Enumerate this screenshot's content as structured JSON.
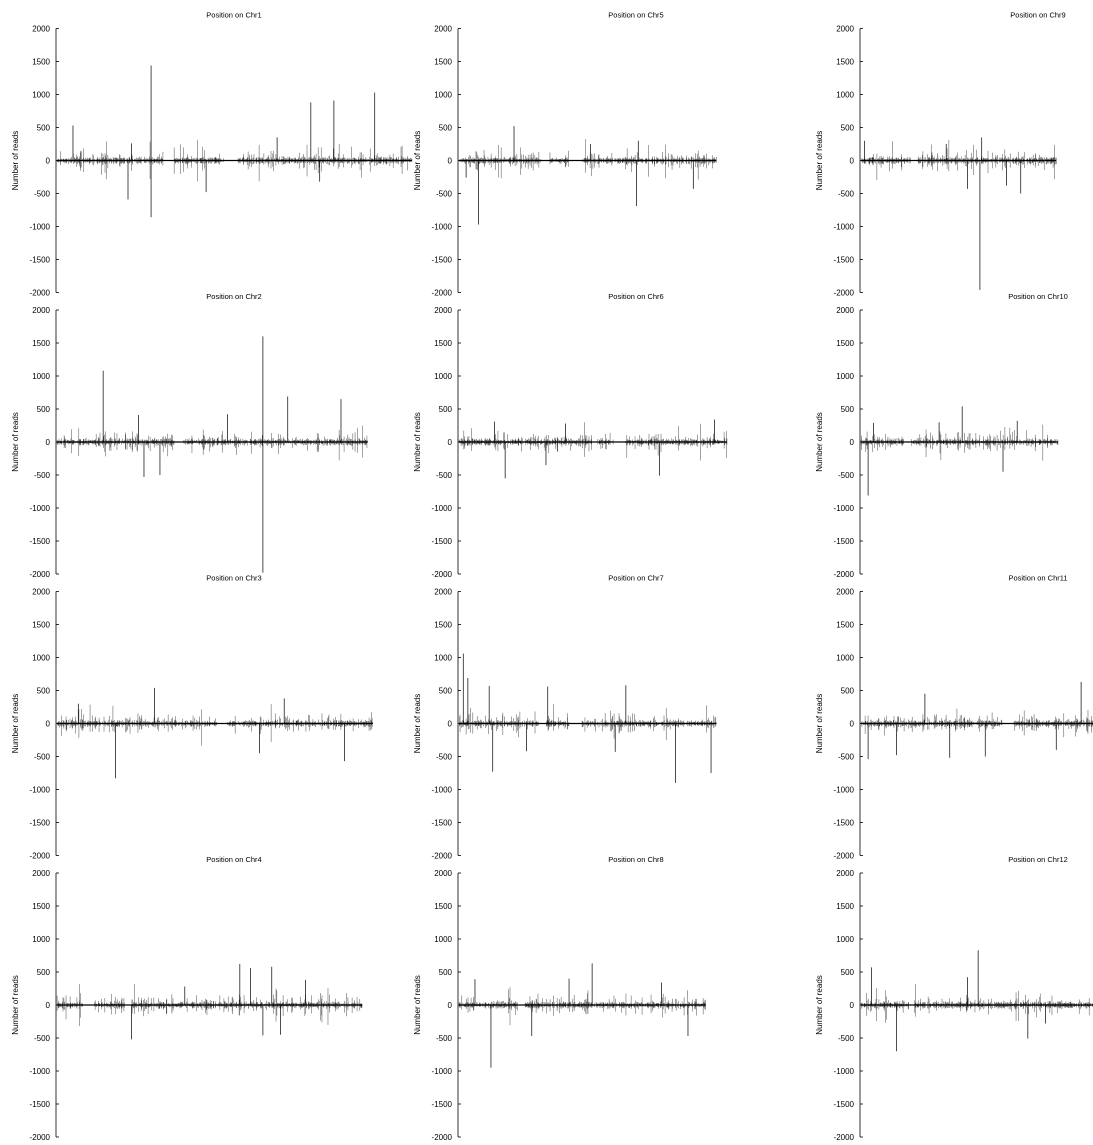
{
  "chart_data": [
    {
      "type": "bar",
      "title": "Position on Chr1",
      "ylabel": "Number of reads",
      "ylim": [
        -2000,
        2000
      ],
      "yticks": [
        2000,
        1500,
        1000,
        500,
        0,
        -500,
        -1000,
        -1500,
        -2000
      ],
      "extent": 1.0,
      "gaps": [
        [
          0.3,
          0.33
        ],
        [
          0.47,
          0.51
        ]
      ],
      "seed": 11,
      "spikes": [
        {
          "x": 0.045,
          "y": 530
        },
        {
          "x": 0.21,
          "y": 260
        },
        {
          "x": 0.265,
          "y": 1440
        },
        {
          "x": 0.265,
          "y": -860
        },
        {
          "x": 0.2,
          "y": -590
        },
        {
          "x": 0.42,
          "y": -480
        },
        {
          "x": 0.715,
          "y": 880
        },
        {
          "x": 0.78,
          "y": 910
        },
        {
          "x": 0.895,
          "y": 1030
        },
        {
          "x": 0.74,
          "y": -320
        },
        {
          "x": 0.62,
          "y": 350
        }
      ]
    },
    {
      "type": "bar",
      "title": "Position on Chr2",
      "ylabel": "Number of reads",
      "ylim": [
        -2000,
        2000
      ],
      "yticks": [
        2000,
        1500,
        1000,
        500,
        0,
        -500,
        -1000,
        -1500,
        -2000
      ],
      "extent": 0.875,
      "gaps": [
        [
          0.33,
          0.355
        ]
      ],
      "seed": 23,
      "spikes": [
        {
          "x": 0.13,
          "y": 1080
        },
        {
          "x": 0.58,
          "y": 1600
        },
        {
          "x": 0.58,
          "y": -1980
        },
        {
          "x": 0.65,
          "y": 690
        },
        {
          "x": 0.8,
          "y": 650
        },
        {
          "x": 0.245,
          "y": -530
        },
        {
          "x": 0.29,
          "y": -500
        },
        {
          "x": 0.48,
          "y": 420
        },
        {
          "x": 0.23,
          "y": 410
        }
      ]
    },
    {
      "type": "bar",
      "title": "Position on Chr3",
      "ylabel": "Number of reads",
      "ylim": [
        -2000,
        2000
      ],
      "yticks": [
        2000,
        1500,
        1000,
        500,
        0,
        -500,
        -1000,
        -1500,
        -2000
      ],
      "extent": 0.89,
      "gaps": [
        [
          0.45,
          0.48
        ]
      ],
      "seed": 37,
      "spikes": [
        {
          "x": 0.165,
          "y": -830
        },
        {
          "x": 0.275,
          "y": 540
        },
        {
          "x": 0.81,
          "y": -570
        },
        {
          "x": 0.57,
          "y": -450
        },
        {
          "x": 0.64,
          "y": 380
        },
        {
          "x": 0.06,
          "y": 300
        }
      ]
    },
    {
      "type": "bar",
      "title": "Position on Chr4",
      "ylabel": "Number of reads",
      "ylim": [
        -2000,
        2000
      ],
      "yticks": [
        2000,
        1500,
        1000,
        500,
        0,
        -500,
        -1000,
        -1500,
        -2000
      ],
      "extent": 0.86,
      "gaps": [
        [
          0.075,
          0.105
        ],
        [
          0.19,
          0.21
        ]
      ],
      "seed": 41,
      "spikes": [
        {
          "x": 0.21,
          "y": -520
        },
        {
          "x": 0.515,
          "y": 620
        },
        {
          "x": 0.545,
          "y": 560
        },
        {
          "x": 0.605,
          "y": 580
        },
        {
          "x": 0.63,
          "y": -450
        },
        {
          "x": 0.58,
          "y": -460
        },
        {
          "x": 0.7,
          "y": 380
        },
        {
          "x": 0.36,
          "y": 280
        }
      ]
    },
    {
      "type": "bar",
      "title": "Position on Chr5",
      "ylabel": "Number of reads",
      "ylim": [
        -2000,
        2000
      ],
      "yticks": [
        2000,
        1500,
        1000,
        500,
        0,
        -500,
        -1000,
        -1500,
        -2000
      ],
      "extent": 0.725,
      "gaps": [
        [
          0.23,
          0.255
        ],
        [
          0.31,
          0.345
        ]
      ],
      "seed": 53,
      "spikes": [
        {
          "x": 0.055,
          "y": -970
        },
        {
          "x": 0.155,
          "y": 520
        },
        {
          "x": 0.5,
          "y": -690
        },
        {
          "x": 0.505,
          "y": 300
        },
        {
          "x": 0.66,
          "y": -430
        },
        {
          "x": 0.37,
          "y": 250
        },
        {
          "x": 0.02,
          "y": -260
        }
      ]
    },
    {
      "type": "bar",
      "title": "Position on Chr6",
      "ylabel": "Number of reads",
      "ylim": [
        -2000,
        2000
      ],
      "yticks": [
        2000,
        1500,
        1000,
        500,
        0,
        -500,
        -1000,
        -1500,
        -2000
      ],
      "extent": 0.755,
      "gaps": [
        [
          0.375,
          0.39
        ],
        [
          0.435,
          0.47
        ]
      ],
      "seed": 61,
      "spikes": [
        {
          "x": 0.13,
          "y": -550
        },
        {
          "x": 0.565,
          "y": -510
        },
        {
          "x": 0.1,
          "y": 310
        },
        {
          "x": 0.72,
          "y": 340
        },
        {
          "x": 0.3,
          "y": 280
        },
        {
          "x": 0.245,
          "y": -350
        }
      ]
    },
    {
      "type": "bar",
      "title": "Position on Chr7",
      "ylabel": "Number of reads",
      "ylim": [
        -2000,
        2000
      ],
      "yticks": [
        2000,
        1500,
        1000,
        500,
        0,
        -500,
        -1000,
        -1500,
        -2000
      ],
      "extent": 0.725,
      "gaps": [
        [
          0.225,
          0.245
        ],
        [
          0.31,
          0.345
        ]
      ],
      "seed": 71,
      "spikes": [
        {
          "x": 0.012,
          "y": 1060
        },
        {
          "x": 0.025,
          "y": 690
        },
        {
          "x": 0.085,
          "y": 570
        },
        {
          "x": 0.095,
          "y": -730
        },
        {
          "x": 0.25,
          "y": 560
        },
        {
          "x": 0.47,
          "y": 580
        },
        {
          "x": 0.61,
          "y": -900
        },
        {
          "x": 0.71,
          "y": -750
        },
        {
          "x": 0.19,
          "y": -420
        },
        {
          "x": 0.44,
          "y": -430
        }
      ]
    },
    {
      "type": "bar",
      "title": "Position on Chr8",
      "ylabel": "Number of reads",
      "ylim": [
        -2000,
        2000
      ],
      "yticks": [
        2000,
        1500,
        1000,
        500,
        0,
        -500,
        -1000,
        -1500,
        -2000
      ],
      "extent": 0.695,
      "gaps": [
        [
          0.165,
          0.185
        ]
      ],
      "seed": 83,
      "spikes": [
        {
          "x": 0.09,
          "y": -950
        },
        {
          "x": 0.375,
          "y": 630
        },
        {
          "x": 0.205,
          "y": -470
        },
        {
          "x": 0.045,
          "y": 390
        },
        {
          "x": 0.645,
          "y": -470
        },
        {
          "x": 0.31,
          "y": 400
        },
        {
          "x": 0.57,
          "y": 340
        }
      ]
    },
    {
      "type": "bar",
      "title": "Position on Chr9",
      "ylabel": "Number of reads",
      "ylim": [
        -2000,
        2000
      ],
      "yticks": [
        2000,
        1500,
        1000,
        500,
        0,
        -500,
        -1000,
        -1500,
        -2000
      ],
      "extent": 0.55,
      "gaps": [
        [
          0.14,
          0.16
        ]
      ],
      "seed": 97,
      "spikes": [
        {
          "x": 0.335,
          "y": -1960
        },
        {
          "x": 0.34,
          "y": 350
        },
        {
          "x": 0.3,
          "y": -430
        },
        {
          "x": 0.41,
          "y": -380
        },
        {
          "x": 0.45,
          "y": -500
        },
        {
          "x": 0.24,
          "y": 250
        },
        {
          "x": 0.01,
          "y": 300
        }
      ]
    },
    {
      "type": "bar",
      "title": "Position on Chr10",
      "ylabel": "Number of reads",
      "ylim": [
        -2000,
        2000
      ],
      "yticks": [
        2000,
        1500,
        1000,
        500,
        0,
        -500,
        -1000,
        -1500,
        -2000
      ],
      "extent": 0.555,
      "gaps": [
        [
          0.12,
          0.14
        ]
      ],
      "seed": 101,
      "spikes": [
        {
          "x": 0.02,
          "y": -810
        },
        {
          "x": 0.285,
          "y": 540
        },
        {
          "x": 0.4,
          "y": -450
        },
        {
          "x": 0.44,
          "y": 320
        },
        {
          "x": 0.22,
          "y": 300
        },
        {
          "x": 0.035,
          "y": 290
        }
      ]
    },
    {
      "type": "bar",
      "title": "Position on Chr11",
      "ylabel": "Number of reads",
      "ylim": [
        -2000,
        2000
      ],
      "yticks": [
        2000,
        1500,
        1000,
        500,
        0,
        -500,
        -1000,
        -1500,
        -2000
      ],
      "extent": 1.0,
      "gaps": [
        [
          0.4,
          0.43
        ]
      ],
      "seed": 113,
      "spikes": [
        {
          "x": 0.02,
          "y": -540
        },
        {
          "x": 0.18,
          "y": 450
        },
        {
          "x": 0.25,
          "y": -520
        },
        {
          "x": 0.35,
          "y": -500
        },
        {
          "x": 0.62,
          "y": 630
        },
        {
          "x": 0.55,
          "y": -400
        },
        {
          "x": 0.94,
          "y": 150
        },
        {
          "x": 0.1,
          "y": -480
        }
      ]
    },
    {
      "type": "bar",
      "title": "Position on Chr12",
      "ylabel": "Number of reads",
      "ylim": [
        -2000,
        2000
      ],
      "yticks": [
        2000,
        1500,
        1000,
        500,
        0,
        -500,
        -1000,
        -1500,
        -2000
      ],
      "extent": 0.92,
      "gaps": [
        [
          0.135,
          0.15
        ]
      ],
      "seed": 127,
      "spikes": [
        {
          "x": 0.03,
          "y": 570
        },
        {
          "x": 0.1,
          "y": -700
        },
        {
          "x": 0.33,
          "y": 830
        },
        {
          "x": 0.47,
          "y": -510
        },
        {
          "x": 0.3,
          "y": 420
        },
        {
          "x": 0.52,
          "y": -280
        },
        {
          "x": 0.78,
          "y": 440
        }
      ]
    }
  ]
}
